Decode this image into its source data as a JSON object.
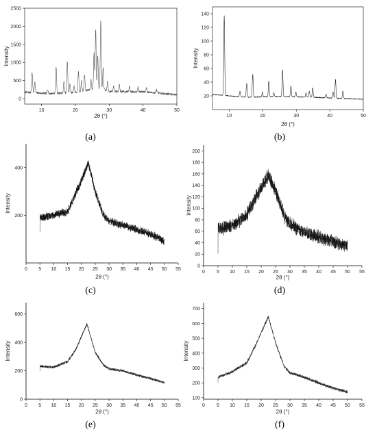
{
  "chart_data": [
    {
      "type": "line",
      "panel_label": "(a)",
      "xlabel": "2θ (°)",
      "ylabel": "Intensity",
      "xlim": [
        5,
        50
      ],
      "ylim": [
        -150,
        2500
      ],
      "xticks": [
        10,
        20,
        30,
        40,
        50
      ],
      "yticks": [
        0,
        500,
        1000,
        1500,
        2000,
        2500
      ],
      "frame": "box",
      "color": "#555555",
      "style": "peaks",
      "baseline": [
        [
          5,
          180
        ],
        [
          12,
          140
        ],
        [
          20,
          170
        ],
        [
          24,
          240
        ],
        [
          27,
          280
        ],
        [
          30,
          200
        ],
        [
          40,
          190
        ],
        [
          50,
          110
        ]
      ],
      "peaks": [
        [
          7.2,
          560
        ],
        [
          8.0,
          300
        ],
        [
          11.8,
          120
        ],
        [
          14.3,
          720
        ],
        [
          16.6,
          300
        ],
        [
          17.6,
          880
        ],
        [
          18.4,
          260
        ],
        [
          19.6,
          180
        ],
        [
          20.9,
          560
        ],
        [
          21.8,
          300
        ],
        [
          22.7,
          450
        ],
        [
          24.6,
          280
        ],
        [
          25.5,
          1000
        ],
        [
          26.0,
          1650
        ],
        [
          26.6,
          900
        ],
        [
          27.5,
          1900
        ],
        [
          28.2,
          600
        ],
        [
          29.5,
          250
        ],
        [
          31.3,
          150
        ],
        [
          33.0,
          180
        ],
        [
          36.0,
          140
        ],
        [
          38.5,
          120
        ],
        [
          41.0,
          130
        ],
        [
          44.0,
          90
        ]
      ],
      "noise": 30,
      "n": 900
    },
    {
      "type": "line",
      "panel_label": "(b)",
      "xlabel": "2θ (°)",
      "ylabel": "Intensity",
      "xlim": [
        5,
        50
      ],
      "ylim": [
        0,
        150
      ],
      "xticks": [
        10,
        20,
        30,
        40,
        50
      ],
      "yticks": [
        20,
        40,
        60,
        80,
        100,
        120,
        140
      ],
      "frame": "box",
      "color": "#222222",
      "style": "peaks",
      "baseline": [
        [
          5,
          22
        ],
        [
          15,
          18
        ],
        [
          25,
          19
        ],
        [
          35,
          18
        ],
        [
          45,
          16
        ],
        [
          50,
          15
        ]
      ],
      "peaks": [
        [
          8.5,
          116
        ],
        [
          13.2,
          8
        ],
        [
          15.2,
          20
        ],
        [
          17.0,
          33
        ],
        [
          19.9,
          7
        ],
        [
          21.8,
          23
        ],
        [
          23.3,
          6
        ],
        [
          25.9,
          39
        ],
        [
          28.4,
          16
        ],
        [
          29.9,
          7
        ],
        [
          32.9,
          6
        ],
        [
          33.9,
          9
        ],
        [
          34.9,
          14
        ],
        [
          38.9,
          5
        ],
        [
          41.0,
          9
        ],
        [
          41.7,
          27
        ],
        [
          43.9,
          11
        ]
      ],
      "noise": 0.6,
      "n": 900
    },
    {
      "type": "line",
      "panel_label": "(c)",
      "xlabel": "2θ (°)",
      "ylabel": "Intensity",
      "xlim": [
        0,
        55
      ],
      "ylim": [
        0,
        500
      ],
      "xticks": [
        0,
        5,
        10,
        15,
        20,
        25,
        30,
        35,
        40,
        45,
        50,
        55
      ],
      "yticks": [
        200,
        400
      ],
      "frame": "l",
      "color": "#111111",
      "style": "hump",
      "baseline": [
        [
          5,
          190
        ],
        [
          10,
          200
        ],
        [
          15,
          215
        ],
        [
          20,
          345
        ],
        [
          22.5,
          420
        ],
        [
          25,
          300
        ],
        [
          28,
          200
        ],
        [
          30,
          175
        ],
        [
          35,
          158
        ],
        [
          40,
          140
        ],
        [
          45,
          120
        ],
        [
          50,
          92
        ]
      ],
      "noise": 14,
      "n": 1800
    },
    {
      "type": "line",
      "panel_label": "(d)",
      "xlabel": "2θ (°)",
      "ylabel": "Intensity",
      "xlim": [
        0,
        55
      ],
      "ylim": [
        0,
        210
      ],
      "xticks": [
        0,
        5,
        10,
        15,
        20,
        25,
        30,
        35,
        40,
        45,
        50,
        55
      ],
      "yticks": [
        0,
        20,
        40,
        60,
        80,
        100,
        120,
        140,
        160,
        180,
        200
      ],
      "frame": "l",
      "color": "#111111",
      "style": "hump",
      "baseline": [
        [
          5,
          63
        ],
        [
          10,
          70
        ],
        [
          15,
          88
        ],
        [
          18,
          118
        ],
        [
          22.5,
          157
        ],
        [
          25,
          130
        ],
        [
          28,
          88
        ],
        [
          30,
          72
        ],
        [
          35,
          58
        ],
        [
          40,
          50
        ],
        [
          45,
          42
        ],
        [
          50,
          34
        ]
      ],
      "noise": 10,
      "n": 1800
    },
    {
      "type": "line",
      "panel_label": "(e)",
      "xlabel": "2θ (°)",
      "ylabel": "Intensity",
      "xlim": [
        0,
        55
      ],
      "ylim": [
        0,
        680
      ],
      "xticks": [
        0,
        5,
        10,
        15,
        20,
        25,
        30,
        35,
        40,
        45,
        50,
        55
      ],
      "yticks": [
        0,
        200,
        400,
        600
      ],
      "frame": "l",
      "color": "#222222",
      "style": "hump",
      "baseline": [
        [
          5,
          232
        ],
        [
          10,
          225
        ],
        [
          15,
          265
        ],
        [
          18,
          350
        ],
        [
          22,
          530
        ],
        [
          25,
          330
        ],
        [
          28,
          240
        ],
        [
          30,
          215
        ],
        [
          35,
          200
        ],
        [
          40,
          170
        ],
        [
          45,
          145
        ],
        [
          50,
          118
        ]
      ],
      "noise": 8,
      "n": 1800
    },
    {
      "type": "line",
      "panel_label": "(f)",
      "xlabel": "2θ (°)",
      "ylabel": "Intensity",
      "xlim": [
        0,
        55
      ],
      "ylim": [
        90,
        740
      ],
      "xticks": [
        0,
        5,
        10,
        15,
        20,
        25,
        30,
        35,
        40,
        45,
        50,
        55
      ],
      "yticks": [
        100,
        200,
        300,
        400,
        500,
        600,
        700
      ],
      "frame": "l",
      "color": "#222222",
      "style": "hump",
      "baseline": [
        [
          5,
          238
        ],
        [
          10,
          275
        ],
        [
          15,
          335
        ],
        [
          18,
          450
        ],
        [
          22.5,
          645
        ],
        [
          25,
          470
        ],
        [
          28,
          310
        ],
        [
          30,
          268
        ],
        [
          35,
          238
        ],
        [
          40,
          200
        ],
        [
          45,
          165
        ],
        [
          50,
          138
        ]
      ],
      "noise": 9,
      "n": 1800
    }
  ]
}
